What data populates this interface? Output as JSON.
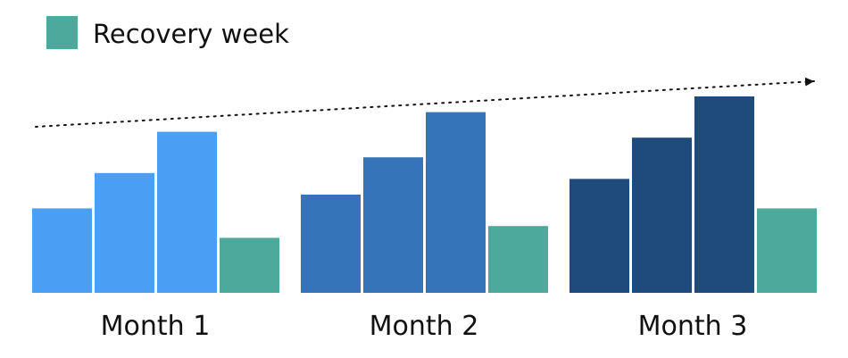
{
  "chart_data": {
    "type": "bar",
    "title": "",
    "xlabel": "",
    "ylabel": "",
    "ylim": [
      0,
      100
    ],
    "grid": false,
    "legend": {
      "placement": "top-left",
      "entries": [
        {
          "label": "Recovery week",
          "color": "#4ea99d"
        }
      ]
    },
    "trend_arrow": {
      "style": "dotted",
      "direction": "rising",
      "color": "#111111"
    },
    "groups": [
      {
        "label": "Month 1",
        "values": [
          43,
          61,
          82,
          28
        ],
        "colors": [
          "#4a9ff5",
          "#4a9ff5",
          "#4a9ff5",
          "#4ea99d"
        ]
      },
      {
        "label": "Month 2",
        "values": [
          50,
          69,
          92,
          34
        ],
        "colors": [
          "#3574b8",
          "#3574b8",
          "#3574b8",
          "#4ea99d"
        ]
      },
      {
        "label": "Month 3",
        "values": [
          58,
          79,
          100,
          43
        ],
        "colors": [
          "#1f4a7c",
          "#1f4a7c",
          "#1f4a7c",
          "#4ea99d"
        ]
      }
    ]
  }
}
